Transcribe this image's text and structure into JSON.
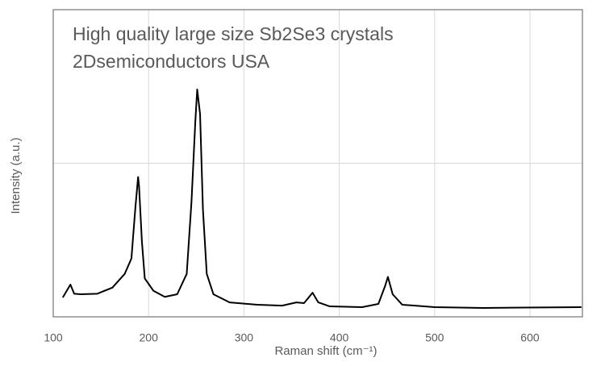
{
  "chart_data": {
    "type": "line",
    "annotations": [
      "High quality large size Sb2Se3 crystals",
      "2Dsemiconductors USA"
    ],
    "x_label": "Raman shift (cm⁻¹)",
    "y_label": "Intensity (a.u.)",
    "xlim": [
      100,
      655
    ],
    "xticks": [
      100,
      200,
      300,
      400,
      500,
      600
    ],
    "ylim": [
      0,
      2
    ],
    "ygrid_lines": [
      1
    ],
    "grid": true,
    "series": [
      {
        "name": "Sb2Se3",
        "color": "#000000",
        "x": [
          110,
          118,
          122,
          129,
          146,
          162,
          175,
          182,
          186,
          189,
          190,
          193,
          196,
          205,
          217,
          230,
          240,
          245,
          249,
          251,
          254,
          257,
          261,
          268,
          285,
          314,
          340,
          355,
          363,
          372,
          378,
          390,
          424,
          441,
          448,
          451,
          456,
          466,
          500,
          551,
          654
        ],
        "values": [
          0.126,
          0.21,
          0.15,
          0.147,
          0.15,
          0.19,
          0.28,
          0.38,
          0.7,
          0.91,
          0.85,
          0.49,
          0.25,
          0.17,
          0.13,
          0.147,
          0.28,
          0.75,
          1.27,
          1.48,
          1.32,
          0.7,
          0.28,
          0.147,
          0.094,
          0.079,
          0.073,
          0.094,
          0.089,
          0.157,
          0.094,
          0.068,
          0.063,
          0.084,
          0.2,
          0.26,
          0.147,
          0.079,
          0.063,
          0.058,
          0.063
        ]
      }
    ]
  }
}
